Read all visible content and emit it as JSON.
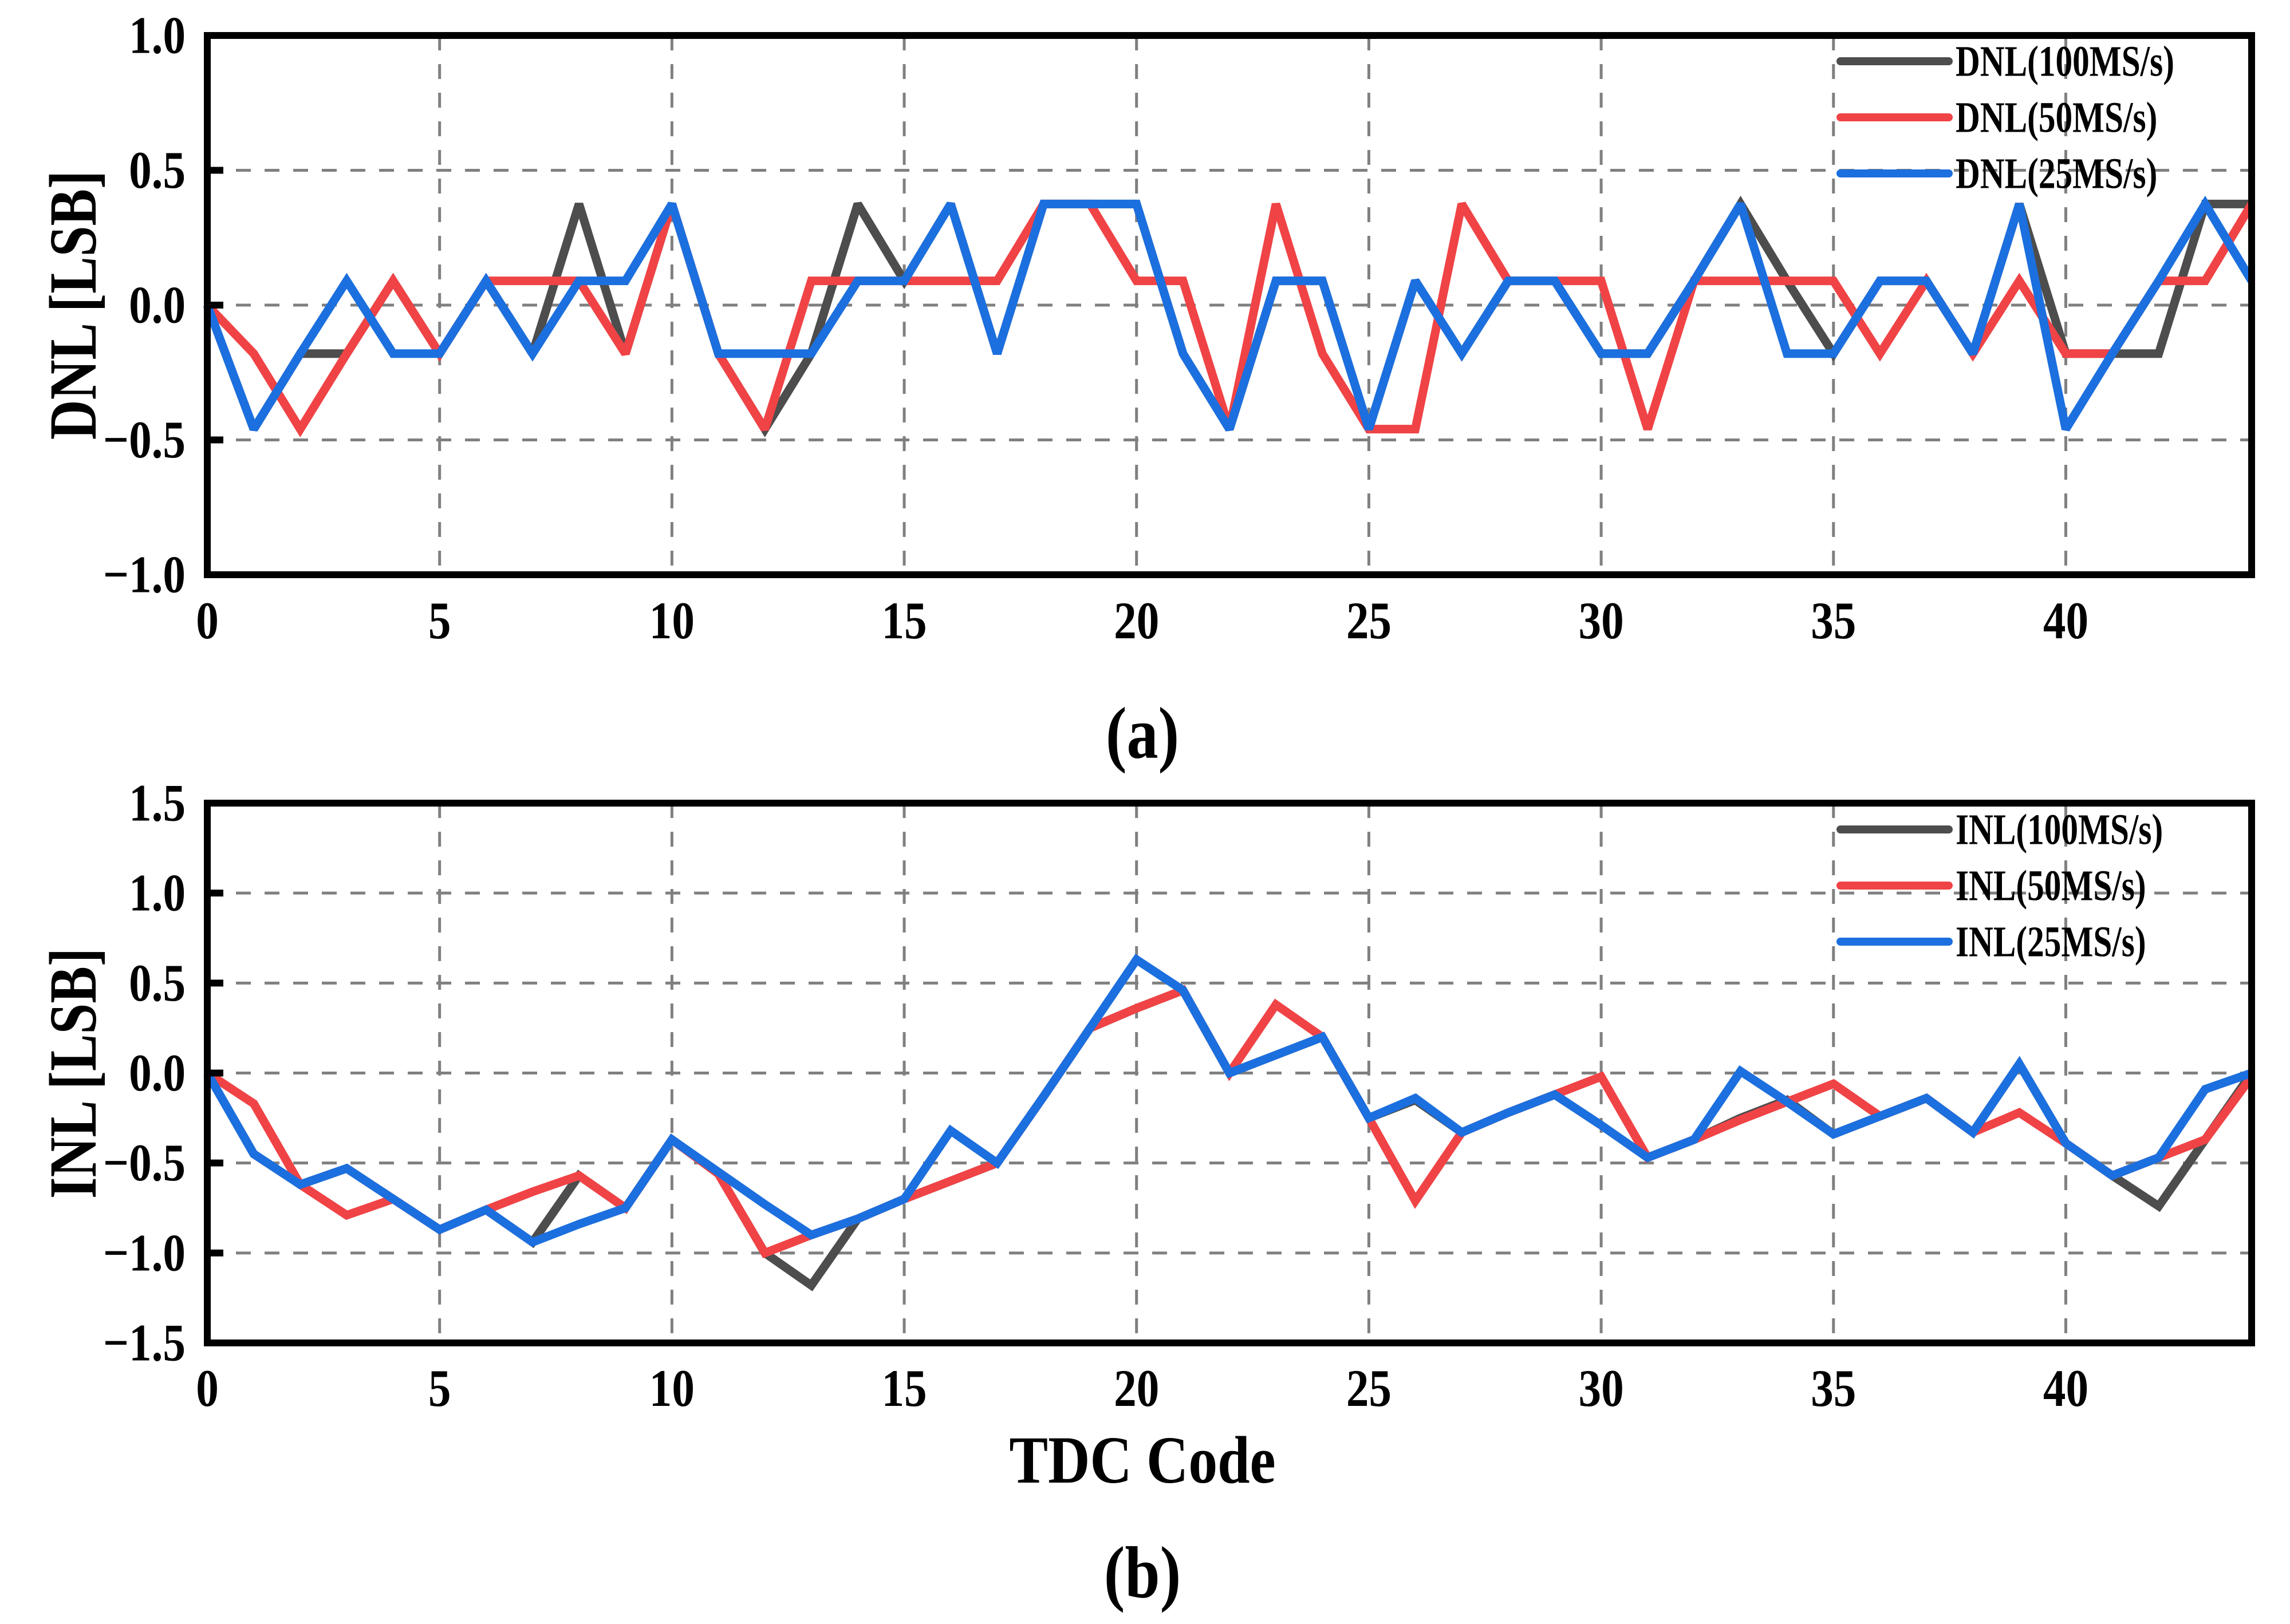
{
  "colors": {
    "series_100": "#4d4d4d",
    "series_50": "#f04346",
    "series_25": "#1c6fde",
    "grid": "#808080",
    "axis": "#000000"
  },
  "chart_data": [
    {
      "type": "line",
      "panel_label": "(a)",
      "title": "",
      "xlabel": "",
      "ylabel": "DNL [LSB]",
      "xlim": [
        0,
        44
      ],
      "ylim": [
        -1.0,
        1.0
      ],
      "xticks": [
        0,
        5,
        10,
        15,
        20,
        25,
        30,
        35,
        40
      ],
      "xtick_labels": [
        "0",
        "5",
        "10",
        "15",
        "20",
        "25",
        "30",
        "35",
        "40"
      ],
      "yticks": [
        1.0,
        0.5,
        0.0,
        -0.5,
        -1.0
      ],
      "ytick_labels": [
        "1.0",
        "0.5",
        "0.0",
        "−0.5",
        "−1.0"
      ],
      "grid": true,
      "legend_position": "top-right",
      "x": [
        0,
        1,
        2,
        3,
        4,
        5,
        6,
        7,
        8,
        9,
        10,
        11,
        12,
        13,
        14,
        15,
        16,
        17,
        18,
        19,
        20,
        21,
        22,
        23,
        24,
        25,
        26,
        27,
        28,
        29,
        30,
        31,
        32,
        33,
        34,
        35,
        36,
        37,
        38,
        39,
        40,
        41,
        42,
        43,
        44
      ],
      "series": [
        {
          "name": "DNL(100MS/s)",
          "color_key": "series_100",
          "values": [
            0,
            -0.46,
            -0.18,
            -0.18,
            0.09,
            -0.18,
            0.09,
            -0.18,
            0.375,
            -0.18,
            0.375,
            -0.18,
            -0.46,
            -0.18,
            0.375,
            0.09,
            0.375,
            -0.18,
            0.375,
            0.375,
            0.375,
            -0.18,
            -0.46,
            0.09,
            0.09,
            -0.46,
            0.09,
            -0.18,
            0.09,
            0.09,
            -0.18,
            -0.18,
            0.09,
            0.375,
            0.09,
            -0.18,
            0.09,
            0.09,
            -0.18,
            0.375,
            -0.18,
            -0.18,
            -0.18,
            0.375,
            0.375
          ]
        },
        {
          "name": "DNL(50MS/s)",
          "color_key": "series_50",
          "values": [
            0,
            -0.18,
            -0.46,
            -0.18,
            0.09,
            -0.18,
            0.09,
            0.09,
            0.09,
            -0.18,
            0.375,
            -0.18,
            -0.46,
            0.09,
            0.09,
            0.09,
            0.09,
            0.09,
            0.375,
            0.375,
            0.09,
            0.09,
            -0.46,
            0.375,
            -0.18,
            -0.46,
            -0.46,
            0.375,
            0.09,
            0.09,
            0.09,
            -0.46,
            0.09,
            0.09,
            0.09,
            0.09,
            -0.18,
            0.09,
            -0.18,
            0.09,
            -0.18,
            -0.18,
            0.09,
            0.09,
            0.375
          ]
        },
        {
          "name": "DNL(25MS/s)",
          "color_key": "series_25",
          "values": [
            0,
            -0.46,
            -0.18,
            0.09,
            -0.18,
            -0.18,
            0.09,
            -0.18,
            0.09,
            0.09,
            0.375,
            -0.18,
            -0.18,
            -0.18,
            0.09,
            0.09,
            0.375,
            -0.18,
            0.375,
            0.375,
            0.375,
            -0.18,
            -0.46,
            0.09,
            0.09,
            -0.46,
            0.09,
            -0.18,
            0.09,
            0.09,
            -0.18,
            -0.18,
            0.09,
            0.375,
            -0.18,
            -0.18,
            0.09,
            0.09,
            -0.18,
            0.375,
            -0.46,
            -0.18,
            0.09,
            0.375,
            0.09
          ]
        }
      ]
    },
    {
      "type": "line",
      "panel_label": "(b)",
      "title": "",
      "xlabel": "TDC Code",
      "ylabel": "INL [LSB]",
      "xlim": [
        0,
        44
      ],
      "ylim": [
        -1.5,
        1.5
      ],
      "xticks": [
        0,
        5,
        10,
        15,
        20,
        25,
        30,
        35,
        40
      ],
      "xtick_labels": [
        "0",
        "5",
        "10",
        "15",
        "20",
        "25",
        "30",
        "35",
        "40"
      ],
      "yticks": [
        1.5,
        1.0,
        0.5,
        0.0,
        -0.5,
        -1.0,
        -1.5
      ],
      "ytick_labels": [
        "1.5",
        "1.0",
        "0.5",
        "0.0",
        "−0.5",
        "−1.0",
        "−1.5"
      ],
      "grid": true,
      "legend_position": "top-right",
      "x": [
        0,
        1,
        2,
        3,
        4,
        5,
        6,
        7,
        8,
        9,
        10,
        11,
        12,
        13,
        14,
        15,
        16,
        17,
        18,
        19,
        20,
        21,
        22,
        23,
        24,
        25,
        26,
        27,
        28,
        29,
        30,
        31,
        32,
        33,
        34,
        35,
        36,
        37,
        38,
        39,
        40,
        41,
        42,
        43,
        44
      ],
      "series": [
        {
          "name": "INL(100MS/s)",
          "color_key": "series_100",
          "values": [
            0,
            -0.45,
            -0.62,
            -0.53,
            -0.7,
            -0.87,
            -0.76,
            -0.94,
            -0.57,
            -0.75,
            -0.37,
            -0.56,
            -1.0,
            -1.18,
            -0.81,
            -0.7,
            -0.6,
            -0.5,
            -0.13,
            0.25,
            0.36,
            0.46,
            0.0,
            0.1,
            0.2,
            -0.25,
            -0.15,
            -0.33,
            -0.22,
            -0.12,
            -0.29,
            -0.47,
            -0.37,
            -0.25,
            -0.15,
            -0.34,
            -0.24,
            -0.14,
            -0.33,
            0.05,
            -0.39,
            -0.57,
            -0.74,
            -0.37,
            0.0
          ]
        },
        {
          "name": "INL(50MS/s)",
          "color_key": "series_50",
          "values": [
            0,
            -0.17,
            -0.62,
            -0.79,
            -0.7,
            -0.87,
            -0.76,
            -0.66,
            -0.57,
            -0.75,
            -0.37,
            -0.56,
            -1.0,
            -0.9,
            -0.81,
            -0.7,
            -0.6,
            -0.5,
            -0.13,
            0.25,
            0.36,
            0.46,
            0.0,
            0.38,
            0.2,
            -0.25,
            -0.71,
            -0.33,
            -0.22,
            -0.12,
            -0.02,
            -0.47,
            -0.37,
            -0.26,
            -0.16,
            -0.06,
            -0.24,
            -0.14,
            -0.33,
            -0.22,
            -0.39,
            -0.57,
            -0.47,
            -0.37,
            -0.02
          ]
        },
        {
          "name": "INL(25MS/s)",
          "color_key": "series_25",
          "values": [
            0,
            -0.45,
            -0.62,
            -0.53,
            -0.7,
            -0.87,
            -0.76,
            -0.94,
            -0.84,
            -0.75,
            -0.37,
            -0.55,
            -0.73,
            -0.9,
            -0.81,
            -0.7,
            -0.32,
            -0.5,
            -0.13,
            0.25,
            0.63,
            0.46,
            0.0,
            0.1,
            0.2,
            -0.25,
            -0.14,
            -0.33,
            -0.22,
            -0.12,
            -0.29,
            -0.47,
            -0.37,
            0.01,
            -0.16,
            -0.34,
            -0.24,
            -0.14,
            -0.33,
            0.05,
            -0.39,
            -0.57,
            -0.47,
            -0.09,
            0.0
          ]
        }
      ]
    }
  ]
}
